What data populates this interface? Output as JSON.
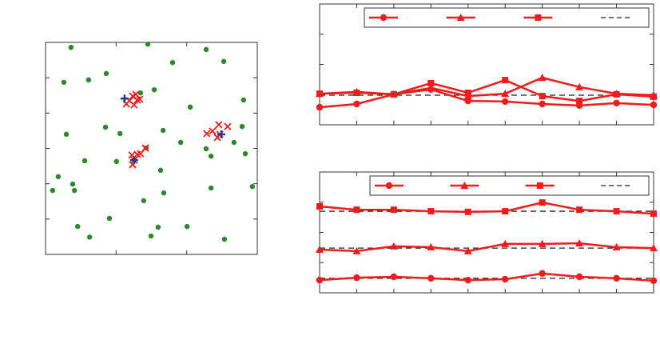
{
  "chart_data": [
    {
      "type": "scatter",
      "xlim": [
        0,
        6
      ],
      "ylim": [
        0,
        6
      ],
      "xticks": [
        0,
        2,
        4,
        6
      ],
      "yticks": [
        0,
        1,
        2,
        3,
        4,
        5,
        6
      ],
      "grid": false,
      "series": [
        {
          "marker": "dot",
          "color": "#2a8a2a",
          "x": [
            0.72,
            2.9,
            3.6,
            4.55,
            5.05,
            0.52,
            1.22,
            1.72,
            3.08,
            2.69,
            5.61,
            4.1,
            0.59,
            1.7,
            2.11,
            3.33,
            3.83,
            4.55,
            4.69,
            5.57,
            5.34,
            5.66,
            2.85,
            1.11,
            2.01,
            3.26,
            0.36,
            0.77,
            0.2,
            0.82,
            4.69,
            3.35,
            5.86,
            2.78,
            1.81,
            0.91,
            1.25,
            3.19,
            2.99,
            4.01,
            5.07
          ],
          "y": [
            5.86,
            5.95,
            5.43,
            5.8,
            5.46,
            4.87,
            4.94,
            5.12,
            4.66,
            4.57,
            4.37,
            4.17,
            3.4,
            3.6,
            3.42,
            3.51,
            3.17,
            2.99,
            2.78,
            3.62,
            3.17,
            2.85,
            3.01,
            2.65,
            2.63,
            2.38,
            2.2,
            1.99,
            1.81,
            1.81,
            1.88,
            1.74,
            1.92,
            1.52,
            1.02,
            0.79,
            0.49,
            0.77,
            0.52,
            0.79,
            0.43
          ]
        },
        {
          "marker": "x",
          "color": "#ee1c1c",
          "x": [
            2.29,
            2.47,
            2.6,
            2.38,
            2.51,
            2.67,
            2.56,
            2.45,
            2.6,
            2.51,
            2.47,
            2.69,
            2.83,
            4.57,
            4.73,
            4.91,
            5.16,
            4.87,
            4.94
          ],
          "y": [
            4.26,
            4.48,
            4.37,
            4.35,
            4.23,
            4.39,
            4.53,
            2.81,
            2.83,
            2.67,
            2.54,
            2.85,
            3.01,
            3.42,
            3.49,
            3.67,
            3.62,
            3.31,
            3.4
          ]
        },
        {
          "marker": "plus",
          "color": "#1f3a8a",
          "x": [
            2.24,
            2.51,
            4.98
          ],
          "y": [
            4.41,
            2.67,
            3.4
          ]
        }
      ]
    },
    {
      "type": "line",
      "x": [
        0,
        1,
        2,
        3,
        4,
        5,
        6,
        7,
        8,
        9
      ],
      "xlim": [
        0,
        9
      ],
      "ylim": [
        0,
        4
      ],
      "xticks": [
        0,
        1,
        2,
        3,
        4,
        5,
        6,
        7,
        8,
        9
      ],
      "yticks": [
        0,
        1,
        2,
        3,
        4
      ],
      "grid": false,
      "legend": "top",
      "series": [
        {
          "marker": "circle",
          "color": "#ee1c1c",
          "values": [
            0.58,
            0.69,
            1.01,
            1.17,
            0.79,
            0.77,
            0.69,
            0.64,
            0.72,
            0.66
          ]
        },
        {
          "marker": "triangle",
          "color": "#ee1c1c",
          "values": [
            1.03,
            1.09,
            1.01,
            1.22,
            0.95,
            1.03,
            1.56,
            1.25,
            1.03,
            0.98
          ]
        },
        {
          "marker": "square",
          "color": "#ee1c1c",
          "values": [
            1.03,
            1.06,
            1.01,
            1.38,
            1.06,
            1.48,
            0.95,
            0.79,
            1.01,
            0.93
          ]
        }
      ],
      "references": [
        0.98
      ],
      "reference_color": "#222222"
    },
    {
      "type": "line",
      "x": [
        0,
        1,
        2,
        3,
        4,
        5,
        6,
        7,
        8,
        9
      ],
      "xlim": [
        0,
        9
      ],
      "ylim": [
        0,
        4
      ],
      "xticks": [
        0,
        1,
        2,
        3,
        4,
        5,
        6,
        7,
        8,
        9
      ],
      "yticks": [
        0,
        1,
        2,
        3,
        4
      ],
      "grid": false,
      "legend": "top",
      "series": [
        {
          "marker": "circle",
          "color": "#ee1c1c",
          "values": [
            0.42,
            0.5,
            0.53,
            0.48,
            0.42,
            0.45,
            0.64,
            0.53,
            0.48,
            0.4
          ]
        },
        {
          "marker": "triangle",
          "color": "#ee1c1c",
          "values": [
            1.43,
            1.38,
            1.54,
            1.51,
            1.38,
            1.62,
            1.62,
            1.64,
            1.51,
            1.48
          ]
        },
        {
          "marker": "square",
          "color": "#ee1c1c",
          "values": [
            2.86,
            2.75,
            2.75,
            2.7,
            2.68,
            2.7,
            2.99,
            2.75,
            2.7,
            2.62
          ]
        }
      ],
      "references": [
        2.7,
        1.48,
        0.48
      ],
      "reference_color": "#222222"
    }
  ]
}
